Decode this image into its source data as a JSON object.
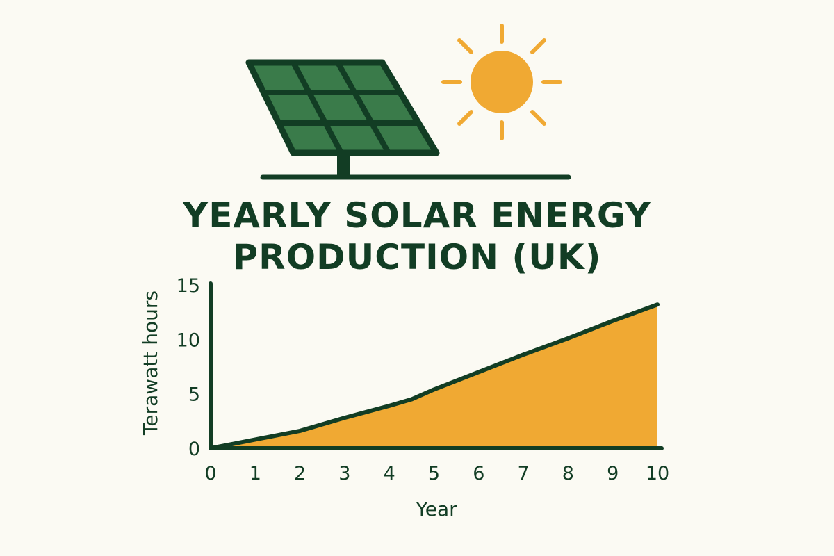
{
  "title_line1": "YEARLY SOLAR ENERGY",
  "title_line2": "PRODUCTION (UK)",
  "colors": {
    "background": "#fbfaf3",
    "dark_green": "#123d24",
    "panel_green": "#3a7b4a",
    "sun_orange": "#f0a933",
    "area_fill": "#f0a933"
  },
  "icons": [
    "solar-panel-icon",
    "sun-icon"
  ],
  "chart_data": {
    "type": "area",
    "title": "YEARLY SOLAR ENERGY PRODUCTION (UK)",
    "xlabel": "Year",
    "ylabel": "Terawatt hours",
    "x": [
      0,
      1,
      2,
      3,
      4,
      4.5,
      5,
      6,
      7,
      8,
      9,
      10
    ],
    "y": [
      0,
      0.8,
      1.6,
      2.8,
      3.9,
      4.5,
      5.4,
      7.0,
      8.6,
      10.1,
      11.7,
      13.2
    ],
    "xticks": [
      "0",
      "1",
      "2",
      "3",
      "4",
      "5",
      "6",
      "7",
      "8",
      "9",
      "10"
    ],
    "yticks": [
      "0",
      "5",
      "10",
      "15"
    ],
    "xlim": [
      0,
      10
    ],
    "ylim": [
      0,
      15
    ],
    "grid": false,
    "legend": "none"
  }
}
